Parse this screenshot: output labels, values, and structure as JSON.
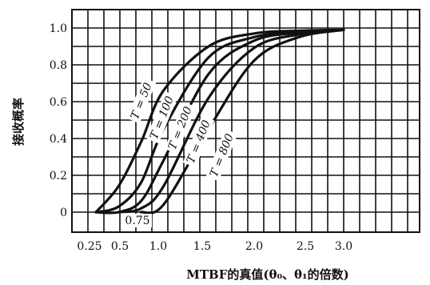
{
  "chart_data": {
    "type": "line",
    "xlabel": "MTBF的真值(θ₀、θ₁的倍数)",
    "ylabel": "接收概率",
    "xlim": [
      0.25,
      3.0
    ],
    "ylim": [
      0,
      1.0
    ],
    "y_ticks": [
      "1.0",
      "0.8",
      "0.6",
      "0.4",
      "0.2",
      "0"
    ],
    "x_ticks": [
      "0.25",
      "0.5",
      "0.75",
      "1.0",
      "1.5",
      "2.0",
      "2.5",
      "3.0"
    ],
    "grid": true,
    "series": [
      {
        "name": "T = 50",
        "x": [
          0.25,
          0.5,
          0.75,
          1.0,
          1.5,
          2.0,
          2.5,
          3.0
        ],
        "y": [
          0.0,
          0.14,
          0.38,
          0.66,
          0.9,
          0.97,
          0.985,
          0.99
        ]
      },
      {
        "name": "T = 100",
        "x": [
          0.25,
          0.5,
          0.75,
          1.0,
          1.5,
          2.0,
          2.5,
          3.0
        ],
        "y": [
          0.0,
          0.03,
          0.16,
          0.45,
          0.84,
          0.95,
          0.98,
          0.99
        ]
      },
      {
        "name": "T = 200",
        "x": [
          0.25,
          0.5,
          0.75,
          1.0,
          1.5,
          2.0,
          2.5,
          3.0
        ],
        "y": [
          0.0,
          0.0,
          0.06,
          0.28,
          0.75,
          0.93,
          0.975,
          0.99
        ]
      },
      {
        "name": "T = 400",
        "x": [
          0.5,
          0.75,
          1.0,
          1.5,
          2.0,
          2.5,
          3.0
        ],
        "y": [
          0.0,
          0.02,
          0.14,
          0.62,
          0.89,
          0.965,
          0.99
        ]
      },
      {
        "name": "T = 800",
        "x": [
          0.75,
          1.0,
          1.5,
          2.0,
          2.5,
          3.0
        ],
        "y": [
          0.0,
          0.04,
          0.45,
          0.82,
          0.95,
          0.99
        ]
      }
    ]
  }
}
